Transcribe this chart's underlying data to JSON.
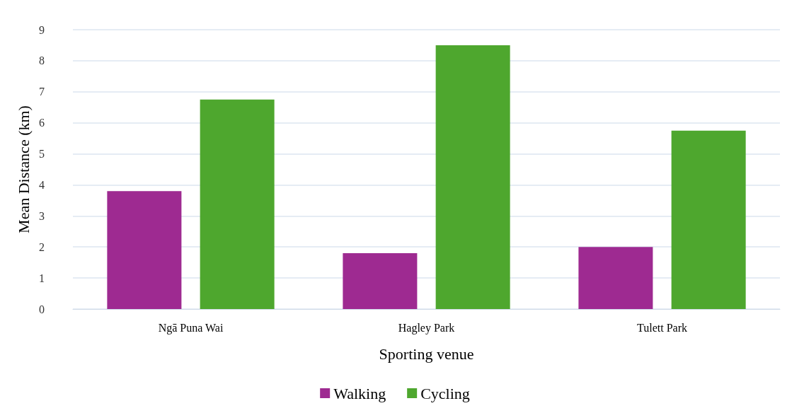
{
  "chart_data": {
    "type": "bar",
    "xlabel": "Sporting venue",
    "ylabel": "Mean Distance (km)",
    "categories": [
      "Ngā Puna Wai",
      "Hagley Park",
      "Tulett Park"
    ],
    "series": [
      {
        "name": "Walking",
        "color": "#9e2a91",
        "values": [
          3.8,
          1.8,
          2.0
        ]
      },
      {
        "name": "Cycling",
        "color": "#4ea72e",
        "values": [
          6.75,
          8.5,
          5.75
        ]
      }
    ],
    "ylim": [
      0,
      9
    ],
    "yticks": [
      0,
      1,
      2,
      3,
      4,
      5,
      6,
      7,
      8,
      9
    ],
    "grid": "y",
    "legend": "bottom"
  }
}
